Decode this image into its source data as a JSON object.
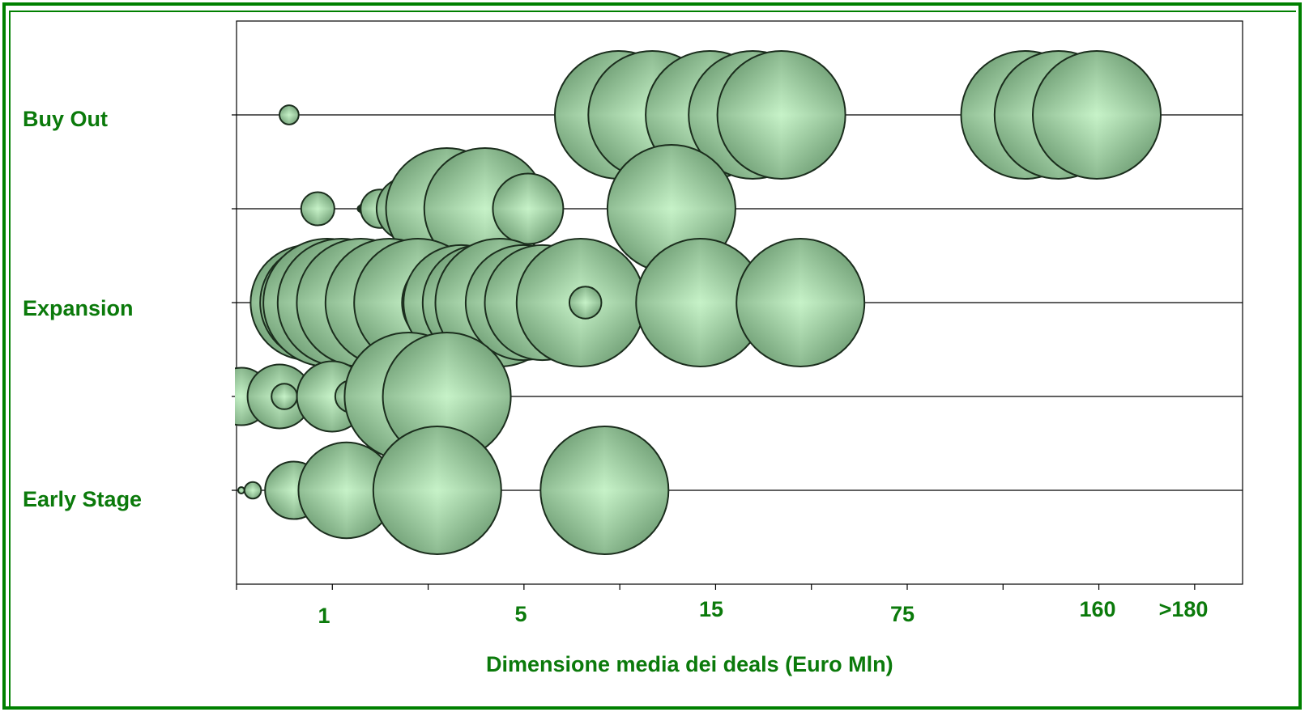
{
  "chart_data": {
    "type": "bubble",
    "xlabel": "Dimensione media dei deals (Euro Mln)",
    "x_ticks": [
      "1",
      "5",
      "15",
      "75",
      "160",
      ">180"
    ],
    "y_categories": [
      "Buy Out",
      "",
      "Expansion",
      "",
      "Early Stage"
    ],
    "y_tick_labels": [
      "Buy Out",
      "Expansion",
      "Early Stage"
    ],
    "grid": "horizontal",
    "bubble_color": "#9fd4a3",
    "x_axis_note": "x values are positions on a categorical size scale (1 = tick '1', 2 = '5', 3 = '15', 4 = '75', 5 = '160', 6 = '>180')",
    "series": [
      {
        "row": "Buy Out",
        "points": [
          {
            "x": 0.55,
            "size": 0.15
          },
          {
            "x": 4.0,
            "size": 1.0
          },
          {
            "x": 4.35,
            "size": 1.0
          },
          {
            "x": 4.95,
            "size": 1.0
          },
          {
            "x": 5.4,
            "size": 1.0
          },
          {
            "x": 5.7,
            "size": 1.0
          },
          {
            "x": 8.25,
            "size": 1.0
          },
          {
            "x": 8.6,
            "size": 1.0
          },
          {
            "x": 9.0,
            "size": 1.0
          }
        ]
      },
      {
        "row": "",
        "points": [
          {
            "x": 0.85,
            "size": 0.26
          },
          {
            "x": 1.3,
            "size": 0.05
          },
          {
            "x": 1.35,
            "size": 0.1
          },
          {
            "x": 1.5,
            "size": 0.3
          },
          {
            "x": 1.8,
            "size": 0.5
          },
          {
            "x": 2.2,
            "size": 0.95
          },
          {
            "x": 2.6,
            "size": 0.95
          },
          {
            "x": 3.05,
            "size": 0.55
          },
          {
            "x": 4.55,
            "size": 1.0
          }
        ]
      },
      {
        "row": "Expansion",
        "points": [
          {
            "x": 0.75,
            "size": 0.9
          },
          {
            "x": 0.85,
            "size": 0.9
          },
          {
            "x": 0.95,
            "size": 1.0
          },
          {
            "x": 1.1,
            "size": 1.0
          },
          {
            "x": 1.3,
            "size": 1.0
          },
          {
            "x": 1.6,
            "size": 1.0
          },
          {
            "x": 1.9,
            "size": 1.0
          },
          {
            "x": 2.1,
            "size": 0.5
          },
          {
            "x": 2.2,
            "size": 0.7
          },
          {
            "x": 2.35,
            "size": 0.9
          },
          {
            "x": 2.55,
            "size": 0.9
          },
          {
            "x": 2.75,
            "size": 1.0
          },
          {
            "x": 3.0,
            "size": 0.9
          },
          {
            "x": 3.2,
            "size": 0.9
          },
          {
            "x": 3.6,
            "size": 1.0
          },
          {
            "x": 3.65,
            "size": 0.25
          },
          {
            "x": 4.85,
            "size": 1.0
          },
          {
            "x": 5.9,
            "size": 1.0
          }
        ]
      },
      {
        "row": "",
        "points": [
          {
            "x": 0.05,
            "size": 0.45
          },
          {
            "x": 0.45,
            "size": 0.5
          },
          {
            "x": 0.5,
            "size": 0.2
          },
          {
            "x": 1.0,
            "size": 0.55
          },
          {
            "x": 1.2,
            "size": 0.25
          },
          {
            "x": 1.8,
            "size": 1.0
          },
          {
            "x": 2.1,
            "size": 0.55
          },
          {
            "x": 2.2,
            "size": 1.0
          }
        ]
      },
      {
        "row": "Early Stage",
        "points": [
          {
            "x": 0.05,
            "size": 0.05
          },
          {
            "x": 0.17,
            "size": 0.13
          },
          {
            "x": 0.6,
            "size": 0.45
          },
          {
            "x": 0.8,
            "size": 0.15
          },
          {
            "x": 0.88,
            "size": 0.2
          },
          {
            "x": 1.15,
            "size": 0.75
          },
          {
            "x": 2.1,
            "size": 1.0
          },
          {
            "x": 3.85,
            "size": 1.0
          }
        ]
      }
    ]
  }
}
